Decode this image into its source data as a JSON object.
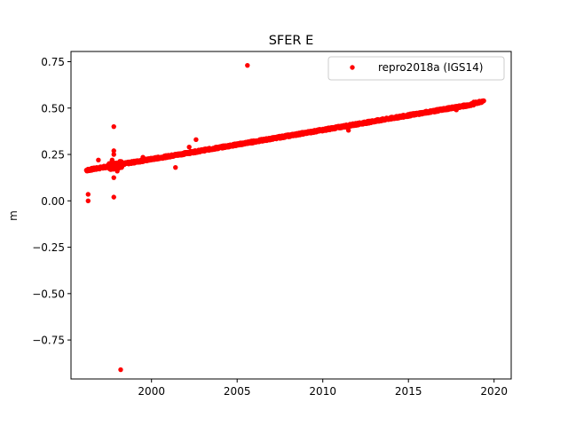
{
  "chart_data": {
    "type": "scatter",
    "title": "SFER E",
    "xlabel": "",
    "ylabel": "m",
    "xlim": [
      1995.3,
      2021.0
    ],
    "ylim": [
      -0.96,
      0.805
    ],
    "xticks": [
      2000,
      2005,
      2010,
      2015,
      2020
    ],
    "yticks": [
      -0.75,
      -0.5,
      -0.25,
      0.0,
      0.25,
      0.5,
      0.75
    ],
    "ytick_labels": [
      "−0.75",
      "−0.50",
      "−0.25",
      "0.00",
      "0.25",
      "0.50",
      "0.75"
    ],
    "grid": false,
    "legend_position": "top-right",
    "series": [
      {
        "name": "repro2018a (IGS14)",
        "color": "#ff0000",
        "marker": "circle",
        "trend": {
          "x_start": 1996.2,
          "x_end": 2019.4,
          "y_start": 0.165,
          "y_end": 0.53
        },
        "outliers": [
          {
            "x": 1996.3,
            "y": 0.035
          },
          {
            "x": 1996.3,
            "y": 0.0
          },
          {
            "x": 1996.9,
            "y": 0.22
          },
          {
            "x": 1997.7,
            "y": 0.22
          },
          {
            "x": 1997.8,
            "y": 0.4
          },
          {
            "x": 1997.8,
            "y": 0.27
          },
          {
            "x": 1997.8,
            "y": 0.25
          },
          {
            "x": 1997.8,
            "y": 0.125
          },
          {
            "x": 1997.8,
            "y": 0.02
          },
          {
            "x": 1998.0,
            "y": 0.16
          },
          {
            "x": 1998.2,
            "y": -0.91
          },
          {
            "x": 1999.5,
            "y": 0.235
          },
          {
            "x": 2001.4,
            "y": 0.18
          },
          {
            "x": 2002.2,
            "y": 0.29
          },
          {
            "x": 2002.6,
            "y": 0.33
          },
          {
            "x": 2005.6,
            "y": 0.73
          },
          {
            "x": 2011.5,
            "y": 0.38
          },
          {
            "x": 2017.8,
            "y": 0.49
          },
          {
            "x": 2018.2,
            "y": 0.505
          }
        ]
      }
    ]
  }
}
